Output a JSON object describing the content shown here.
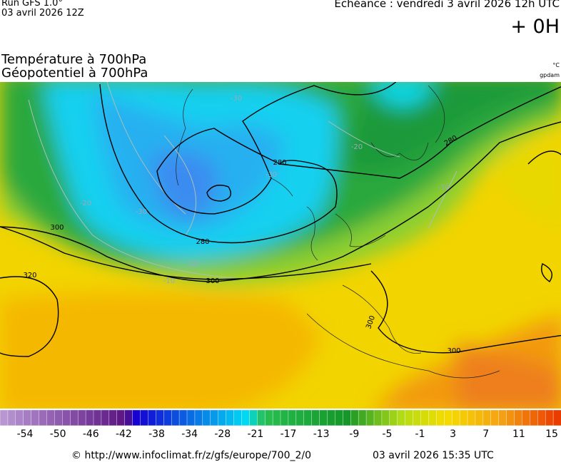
{
  "header": {
    "run": "Run GFS 1.0°",
    "run_date": "03 avril 2026 12Z",
    "forecast": "Echéance : vendredi 3 avril 2026 12h UTC",
    "lead": "+ 0H"
  },
  "titles": [
    "Température à 700hPa",
    "Géopotentiel à 700hPa"
  ],
  "units": [
    "°C",
    "gpdam"
  ],
  "contour_labels": [
    "300",
    "320",
    "280",
    "300",
    "300",
    "300",
    "280",
    "280",
    "-20",
    "-30",
    "-20",
    "-10",
    "-30",
    "-20",
    "-30",
    "-10"
  ],
  "colorbar": {
    "ticks": [
      -54,
      -50,
      -46,
      -42,
      -38,
      -34,
      -28,
      -21,
      -17,
      -13,
      -9,
      -5,
      -1,
      3,
      7,
      11,
      15
    ]
  },
  "footer": {
    "source": "© http://www.infoclimat.fr/z/gfs/europe/700_2/0",
    "generated": "03 avril 2026 15:35 UTC"
  }
}
